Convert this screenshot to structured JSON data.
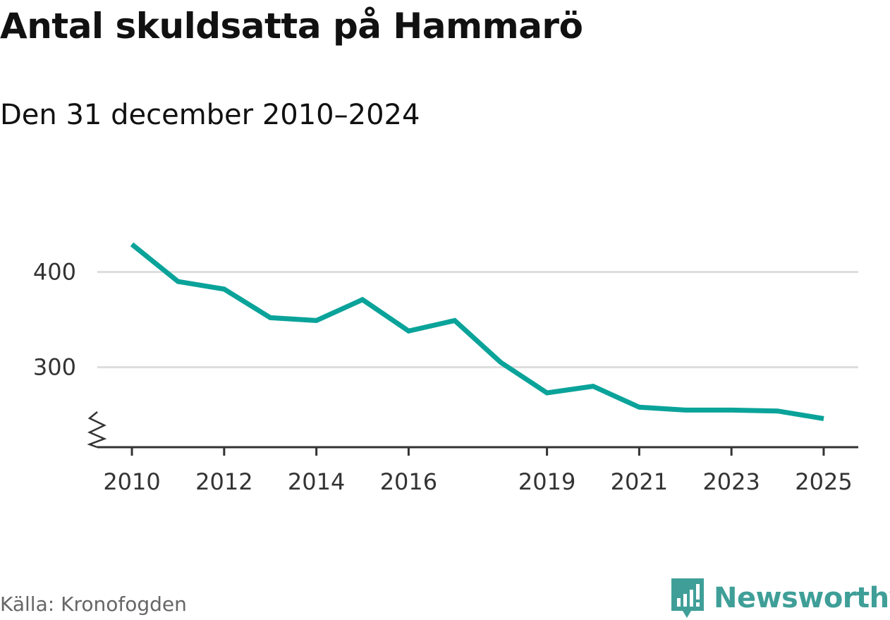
{
  "title": "Antal skuldsatta på Hammarö",
  "subtitle": "Den 31 december 2010–2024",
  "source": "Källa: Kronofogden",
  "brand": {
    "name": "Newsworthy",
    "icon": "newsworthy-logo-icon",
    "color": "#3f9f98"
  },
  "chart_data": {
    "type": "line",
    "title": "Antal skuldsatta på Hammarö",
    "subtitle": "Den 31 december 2010–2024",
    "xlabel": "",
    "ylabel": "",
    "x": [
      2010,
      2011,
      2012,
      2013,
      2014,
      2015,
      2016,
      2017,
      2018,
      2019,
      2020,
      2021,
      2022,
      2023,
      2024,
      2025
    ],
    "series": [
      {
        "name": "Antal skuldsatta",
        "color": "#0aa39a",
        "values": [
          429,
          390,
          382,
          352,
          349,
          371,
          338,
          349,
          305,
          273,
          280,
          258,
          255,
          255,
          254,
          246
        ]
      }
    ],
    "xticks": [
      "2010",
      "2012",
      "2014",
      "2016",
      "2019",
      "2021",
      "2023",
      "2025"
    ],
    "yticks": [
      "300",
      "400"
    ],
    "ylim": [
      216,
      456
    ],
    "xlim": [
      2009.25,
      2025.75
    ],
    "grid": true,
    "axis_break": true,
    "legend": "none"
  }
}
